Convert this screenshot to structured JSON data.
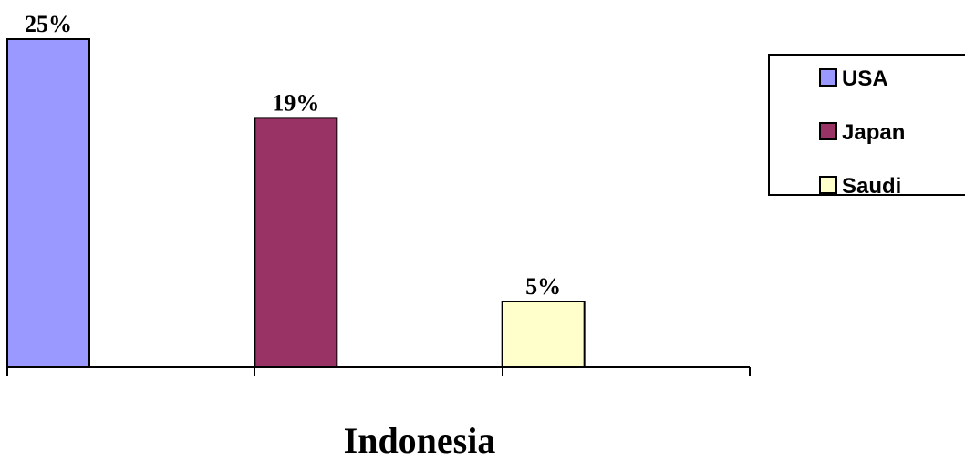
{
  "chart_data": {
    "type": "bar",
    "title": "",
    "xlabel": "Indonesia",
    "ylabel": "",
    "ylim": [
      0,
      25
    ],
    "grid": false,
    "legend_position": "top-right",
    "series": [
      {
        "name": "USA",
        "value": 25,
        "label": "25%",
        "color": "#9999ff"
      },
      {
        "name": "Japan",
        "value": 19,
        "label": "19%",
        "color": "#993366"
      },
      {
        "name": "Saudi",
        "value": 5,
        "label": "5%",
        "color": "#ffffcc"
      }
    ]
  }
}
